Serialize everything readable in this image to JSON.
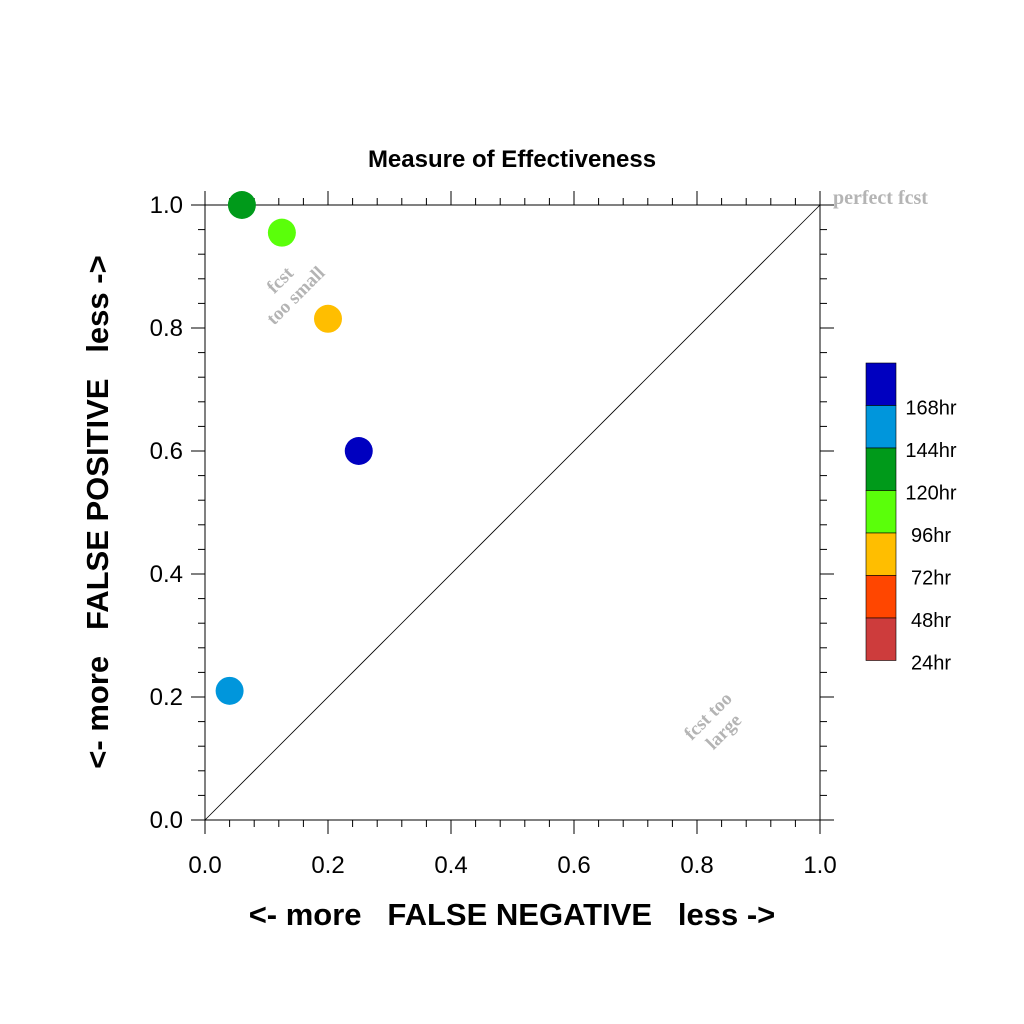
{
  "chart_data": {
    "type": "scatter",
    "title": "Measure of Effectiveness",
    "xlabel": "<- more   FALSE NEGATIVE   less ->",
    "ylabel": "<- more   FALSE POSITIVE   less ->",
    "xlim": [
      0,
      1
    ],
    "ylim": [
      0,
      1
    ],
    "x_ticks": [
      "0.0",
      "0.2",
      "0.4",
      "0.6",
      "0.8",
      "1.0"
    ],
    "y_ticks": [
      "0.0",
      "0.2",
      "0.4",
      "0.6",
      "0.8",
      "1.0"
    ],
    "grid": false,
    "diagonal": true,
    "legend_position": "right",
    "series": [
      {
        "name": "168hr",
        "color": "#0000c0",
        "points": [
          {
            "x": 0.25,
            "y": 0.6
          }
        ]
      },
      {
        "name": "144hr",
        "color": "#0096dc",
        "points": [
          {
            "x": 0.04,
            "y": 0.21
          }
        ]
      },
      {
        "name": "120hr",
        "color": "#009a1a",
        "points": [
          {
            "x": 0.06,
            "y": 1.0
          }
        ]
      },
      {
        "name": "96hr",
        "color": "#5aff0a",
        "points": [
          {
            "x": 0.125,
            "y": 0.955
          }
        ]
      },
      {
        "name": "72hr",
        "color": "#ffbe00",
        "points": [
          {
            "x": 0.2,
            "y": 0.815
          }
        ]
      },
      {
        "name": "48hr",
        "color": "#ff4600",
        "points": []
      },
      {
        "name": "24hr",
        "color": "#cd3c3c",
        "points": []
      }
    ],
    "annotations": {
      "perfect": "perfect fcst",
      "too_small_1": "fcst",
      "too_small_2": "too small",
      "too_large_1": "fcst too",
      "too_large_2": "large"
    }
  }
}
